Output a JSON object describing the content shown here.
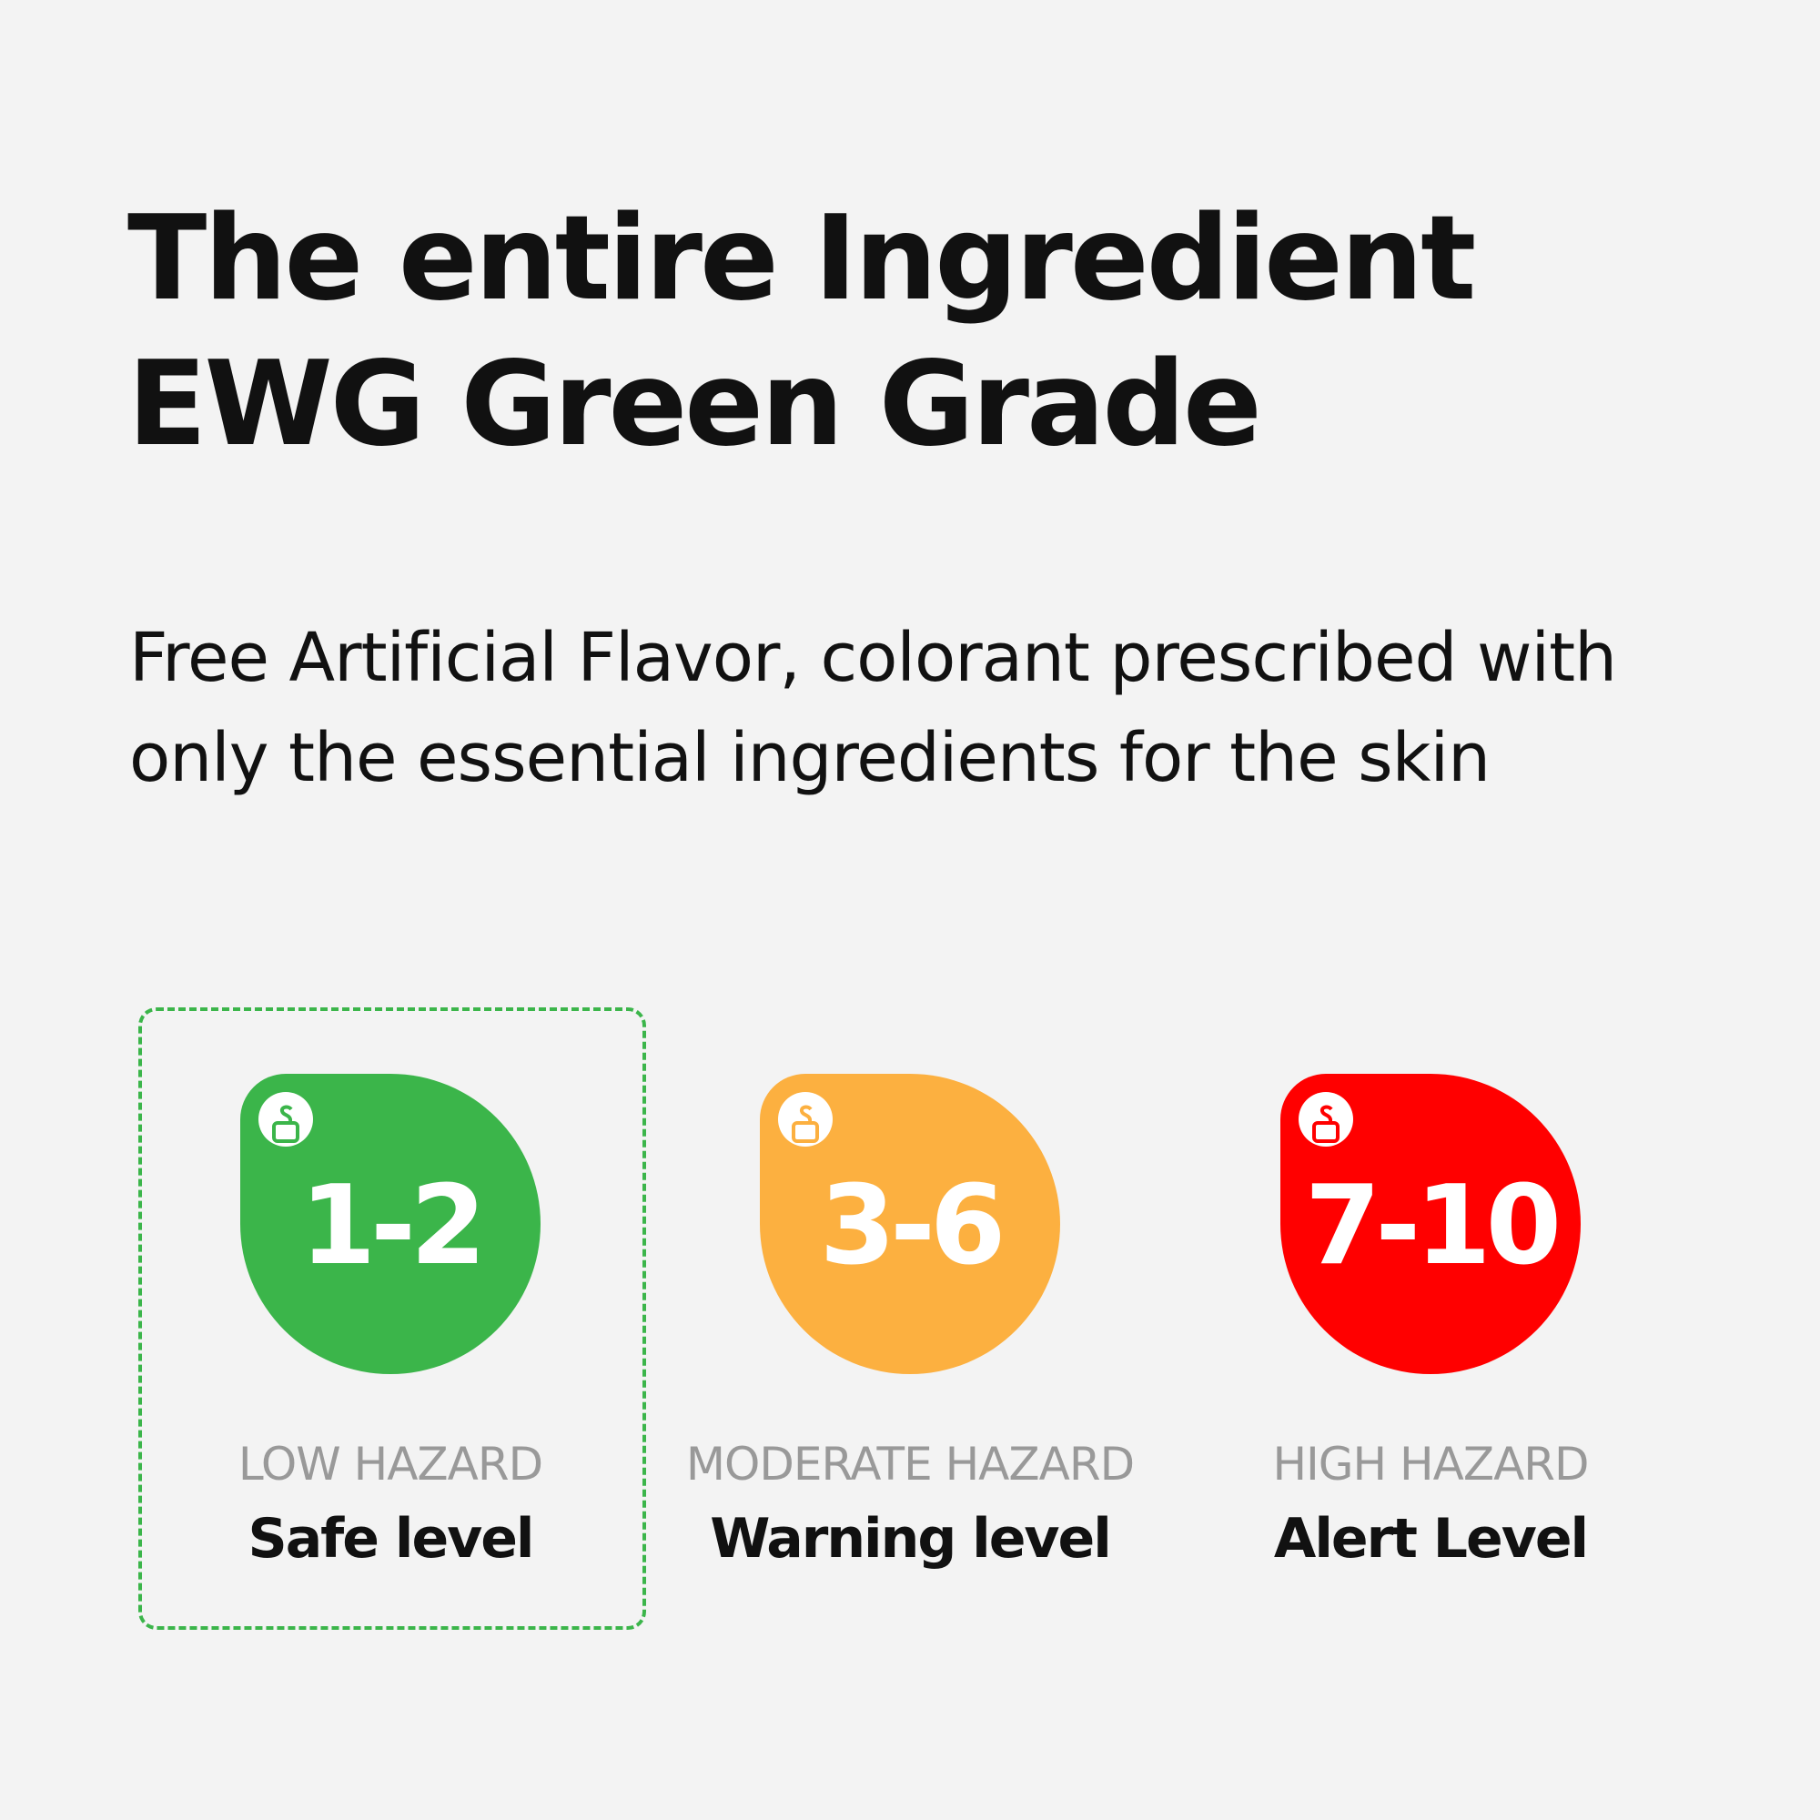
{
  "title": {
    "line1": "The entire Ingredient",
    "line2": "EWG Green Grade"
  },
  "subtitle": {
    "line1": "Free Artificial Flavor, colorant prescribed with",
    "line2": "only the essential ingredients for the skin"
  },
  "levels": [
    {
      "range": "1-2",
      "hazard": "LOW HAZARD",
      "name": "Safe level",
      "color": "#3bb54a",
      "icon": "ewg-skin-deep-icon",
      "selected": true
    },
    {
      "range": "3-6",
      "hazard": "MODERATE HAZARD",
      "name": "Warning level",
      "color": "#fcb040",
      "icon": "ewg-skin-deep-icon",
      "selected": false
    },
    {
      "range": "7-10",
      "hazard": "HIGH HAZARD",
      "name": "Alert Level",
      "color": "#ff0000",
      "icon": "ewg-skin-deep-icon",
      "selected": false
    }
  ]
}
